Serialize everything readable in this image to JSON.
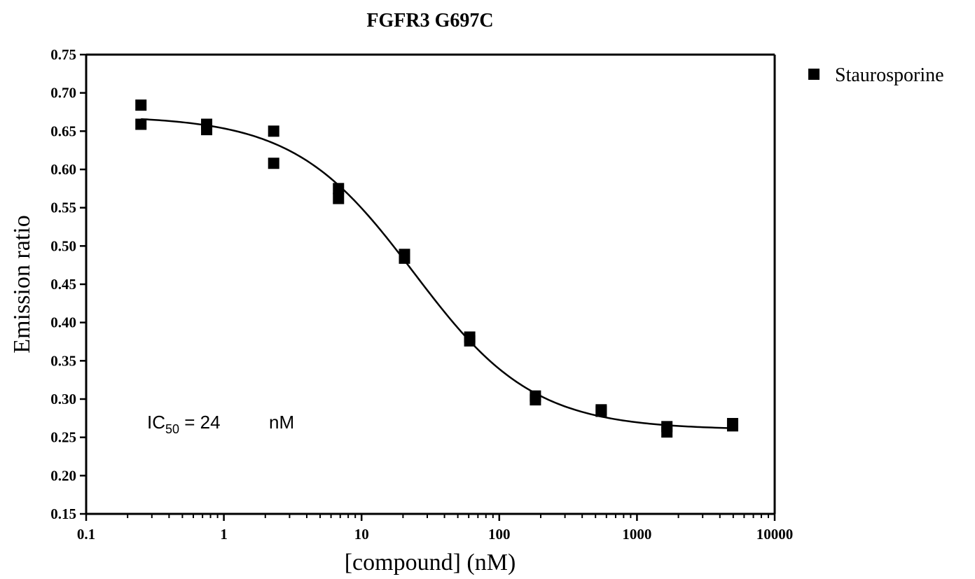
{
  "chart_data": {
    "type": "scatter",
    "title": "FGFR3 G697C",
    "xlabel": "[compound] (nM)",
    "ylabel": "Emission ratio",
    "x_scale": "log",
    "xlim": [
      0.1,
      10000
    ],
    "ylim": [
      0.15,
      0.75
    ],
    "x_ticks": [
      "0.1",
      "1",
      "10",
      "100",
      "1000",
      "10000"
    ],
    "y_ticks": [
      "0.15",
      "0.20",
      "0.25",
      "0.30",
      "0.35",
      "0.40",
      "0.45",
      "0.50",
      "0.55",
      "0.60",
      "0.65",
      "0.70",
      "0.75"
    ],
    "grid": false,
    "legend": {
      "position": "top-right",
      "entries": [
        "Staurosporine"
      ]
    },
    "annotation": {
      "prefix": "IC",
      "subscript": "50",
      "value_text": " = 24",
      "unit": "nM"
    },
    "series": [
      {
        "name": "Staurosporine",
        "marker": "square",
        "color": "#000000",
        "points": [
          [
            0.25,
            0.684
          ],
          [
            0.25,
            0.659
          ],
          [
            0.75,
            0.659
          ],
          [
            0.75,
            0.652
          ],
          [
            2.3,
            0.65
          ],
          [
            2.3,
            0.608
          ],
          [
            6.8,
            0.575
          ],
          [
            6.8,
            0.562
          ],
          [
            20.5,
            0.489
          ],
          [
            20.5,
            0.484
          ],
          [
            61,
            0.381
          ],
          [
            61,
            0.376
          ],
          [
            183,
            0.304
          ],
          [
            183,
            0.299
          ],
          [
            550,
            0.286
          ],
          [
            550,
            0.284
          ],
          [
            1650,
            0.264
          ],
          [
            1650,
            0.257
          ],
          [
            4950,
            0.268
          ],
          [
            4950,
            0.265
          ]
        ]
      }
    ],
    "fit": {
      "model": "four-parameter logistic",
      "top": 0.67,
      "bottom": 0.26,
      "ic50": 24,
      "hill": 1,
      "x_range": [
        0.25,
        4950
      ]
    }
  }
}
